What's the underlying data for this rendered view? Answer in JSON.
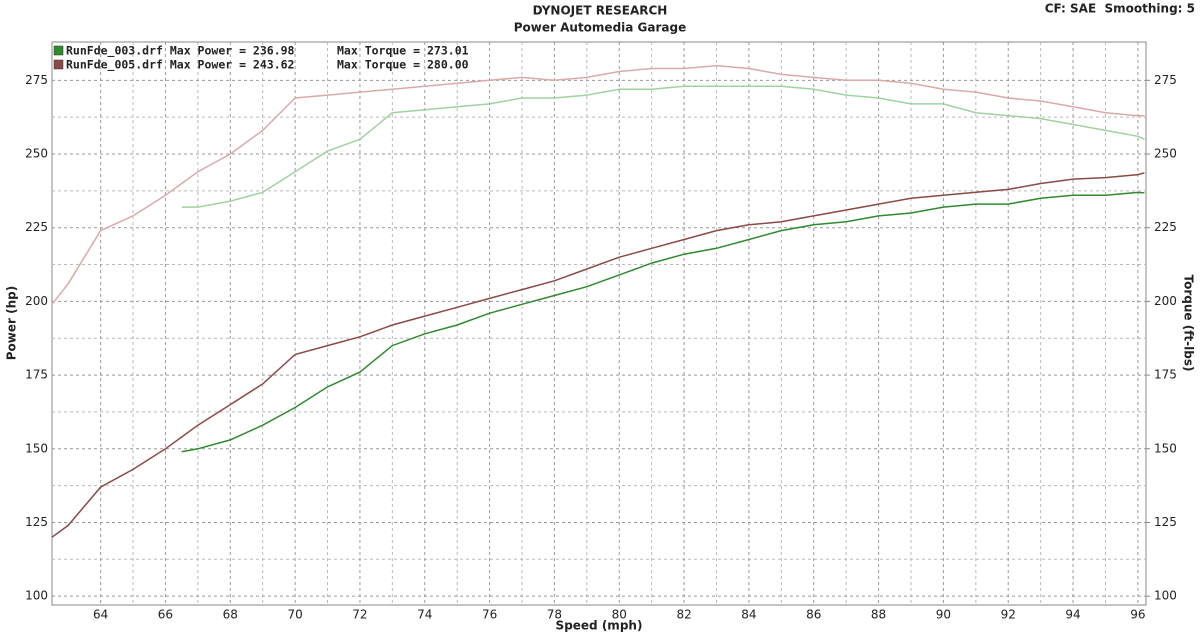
{
  "chart_data": {
    "type": "line",
    "title": "DYNOJET RESEARCH",
    "subtitle": "Power Automedia Garage",
    "annotation": "CF: SAE  Smoothing: 5",
    "x_label": "Speed (mph)",
    "y_label": "Power (hp)",
    "y2_label": "Torque (ft-lbs)",
    "grid": true,
    "legend": "upper left",
    "x": [
      62.5,
      63,
      64,
      65,
      66,
      66.5,
      67,
      68,
      69,
      70,
      71,
      72,
      73,
      74,
      75,
      76,
      77,
      78,
      79,
      80,
      81,
      82,
      83,
      84,
      85,
      86,
      87,
      88,
      89,
      90,
      91,
      92,
      93,
      94,
      95,
      96,
      96.2
    ],
    "xlim": [
      62.5,
      96.25
    ],
    "xticks": [
      64,
      66,
      68,
      70,
      72,
      74,
      76,
      78,
      80,
      82,
      84,
      86,
      88,
      90,
      92,
      94,
      96
    ],
    "ylim": [
      97,
      288
    ],
    "yticks": [
      100,
      125,
      150,
      175,
      200,
      225,
      250,
      275
    ],
    "y2lim": [
      97,
      288
    ],
    "y2ticks": [
      100,
      125,
      150,
      175,
      200,
      225,
      250,
      275
    ],
    "series": [
      {
        "name": "RunFde_003.drf Max Power = 236.98",
        "color": "#2e8b2e",
        "values": [
          null,
          null,
          null,
          null,
          null,
          149,
          150,
          153,
          158,
          164,
          171,
          176,
          185,
          189,
          192,
          196,
          199,
          202,
          205,
          209,
          213,
          216,
          218,
          221,
          224,
          226,
          227,
          229,
          230,
          232,
          233,
          233,
          235,
          236,
          236,
          236.98,
          236.8
        ]
      },
      {
        "name": "Max Torque = 273.01",
        "color": "#9fd39f",
        "axis": "y2",
        "values": [
          null,
          null,
          null,
          null,
          null,
          232,
          232,
          234,
          237,
          244,
          251,
          255,
          264,
          265,
          266,
          267,
          269,
          269,
          270,
          272,
          272,
          273,
          273,
          273,
          273,
          272,
          270,
          269,
          267,
          267,
          264,
          263,
          262,
          260,
          258,
          256,
          255
        ]
      },
      {
        "name": "RunFde_005.drf Max Power = 243.62",
        "color": "#8b4a44",
        "values": [
          120,
          124,
          137,
          143,
          150,
          154,
          158,
          165,
          172,
          182,
          185,
          188,
          192,
          195,
          198,
          201,
          204,
          207,
          211,
          215,
          218,
          221,
          224,
          226,
          227,
          229,
          231,
          233,
          235,
          236,
          237,
          238,
          240,
          241.5,
          242,
          243,
          243.6
        ]
      },
      {
        "name": "Max Torque = 280.00",
        "color": "#dcaaa6",
        "axis": "y2",
        "values": [
          199,
          206,
          224,
          229,
          236,
          240,
          244,
          250,
          258,
          269,
          270,
          271,
          272,
          273,
          274,
          275,
          276,
          275,
          276,
          278,
          279,
          279,
          280,
          279,
          277,
          276,
          275,
          275,
          274,
          272,
          271,
          269,
          268,
          266,
          264,
          263,
          263
        ]
      }
    ]
  }
}
